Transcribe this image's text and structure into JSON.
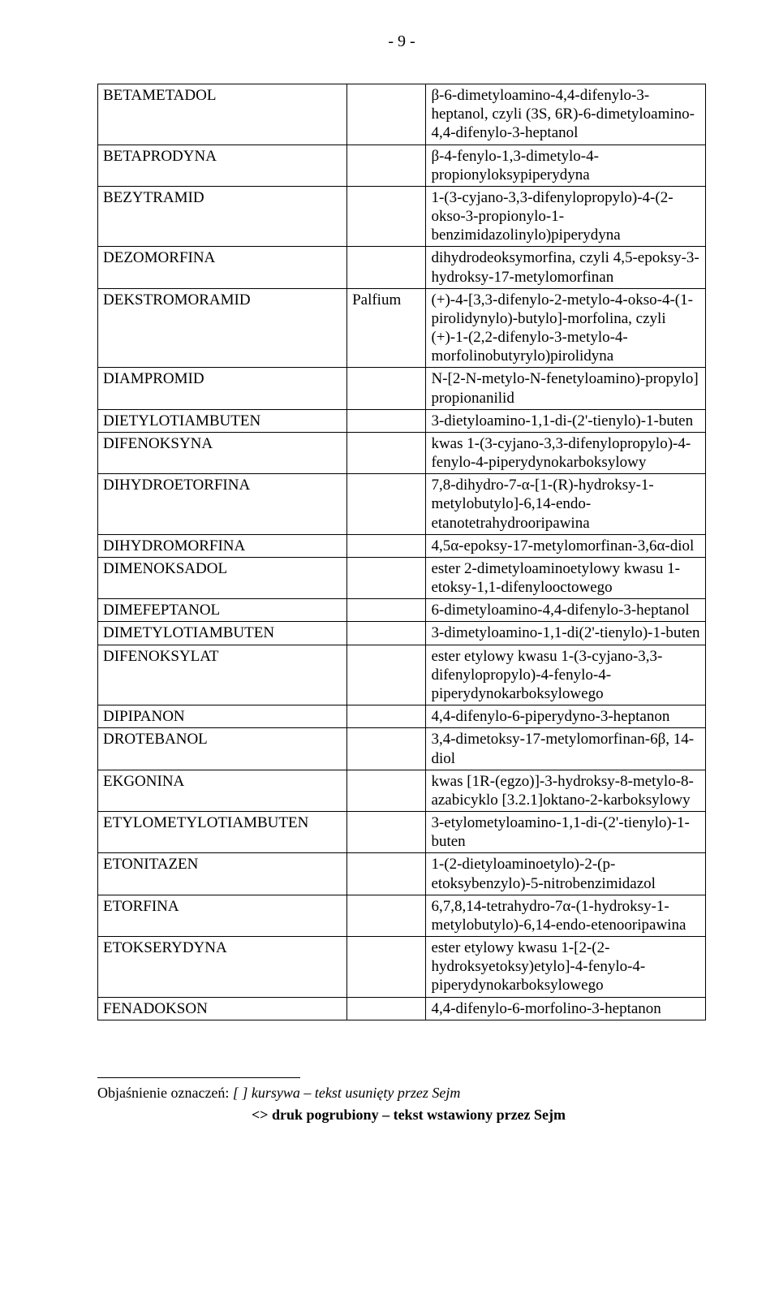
{
  "page_number": "- 9 -",
  "rows": [
    {
      "name": "BETAMETADOL",
      "synonym": "",
      "desc": "β-6-dimetyloamino-4,4-difenylo-3-heptanol, czyli (3S, 6R)-6-dimetyloamino-4,4-difenylo-3-heptanol"
    },
    {
      "name": "BETAPRODYNA",
      "synonym": "",
      "desc": "β-4-fenylo-1,3-dimetylo-4-propionyloksypiperydyna"
    },
    {
      "name": "BEZYTRAMID",
      "synonym": "",
      "desc": "1-(3-cyjano-3,3-difenylopropylo)-4-(2-okso-3-propionylo-1-benzimidazolinylo)piperydyna"
    },
    {
      "name": "DEZOMORFINA",
      "synonym": "",
      "desc": "dihydrodeoksymorfina, czyli 4,5-epoksy-3-hydroksy-17-metylomorfinan"
    },
    {
      "name": "DEKSTROMORAMID",
      "synonym": "Palfium",
      "desc": "(+)-4-[3,3-difenylo-2-metylo-4-okso-4-(1-pirolidynylo)-butylo]-morfolina, czyli (+)-1-(2,2-difenylo-3-metylo-4-morfolinobutyrylo)pirolidyna"
    },
    {
      "name": "DIAMPROMID",
      "synonym": "",
      "desc": "N-[2-N-metylo-N-fenetyloamino)-propylo] propionanilid"
    },
    {
      "name": "DIETYLOTIAMBUTEN",
      "synonym": "",
      "desc": "3-dietyloamino-1,1-di-(2'-tienylo)-1-buten"
    },
    {
      "name": "DIFENOKSYNA",
      "synonym": "",
      "desc": "kwas 1-(3-cyjano-3,3-difenylopropylo)-4-fenylo-4-piperydynokarboksylowy"
    },
    {
      "name": "DIHYDROETORFINA",
      "synonym": "",
      "desc": "7,8-dihydro-7-α-[1-(R)-hydroksy-1-metylobutylo]-6,14-endo-etanotetrahydrooripawina"
    },
    {
      "name": "DIHYDROMORFINA",
      "synonym": "",
      "desc": "4,5α-epoksy-17-metylomorfinan-3,6α-diol"
    },
    {
      "name": "DIMENOKSADOL",
      "synonym": "",
      "desc": "ester 2-dimetyloaminoetylowy kwasu 1-etoksy-1,1-difenylooctowego"
    },
    {
      "name": "DIMEFEPTANOL",
      "synonym": "",
      "desc": "6-dimetyloamino-4,4-difenylo-3-heptanol"
    },
    {
      "name": "DIMETYLOTIAMBUTEN",
      "synonym": "",
      "desc": "3-dimetyloamino-1,1-di(2'-tienylo)-1-buten"
    },
    {
      "name": "DIFENOKSYLAT",
      "synonym": "",
      "desc": "ester etylowy kwasu 1-(3-cyjano-3,3-difenylopropylo)-4-fenylo-4-piperydynokarboksylowego"
    },
    {
      "name": "DIPIPANON",
      "synonym": "",
      "desc": "4,4-difenylo-6-piperydyno-3-heptanon"
    },
    {
      "name": "DROTEBANOL",
      "synonym": "",
      "desc": "3,4-dimetoksy-17-metylomorfinan-6β, 14-diol"
    },
    {
      "name": "EKGONINA",
      "synonym": "",
      "desc": "kwas [1R-(egzo)]-3-hydroksy-8-metylo-8-azabicyklo [3.2.1]oktano-2-karboksylowy"
    },
    {
      "name": "ETYLOMETYLOTIAMBUTEN",
      "synonym": "",
      "desc": "3-etylometyloamino-1,1-di-(2'-tienylo)-1-buten"
    },
    {
      "name": "ETONITAZEN",
      "synonym": "",
      "desc": "1-(2-dietyloaminoetylo)-2-(p-etoksybenzylo)-5-nitrobenzimidazol"
    },
    {
      "name": "ETORFINA",
      "synonym": "",
      "desc": "6,7,8,14-tetrahydro-7α-(1-hydroksy-1-metylobutylo)-6,14-endo-etenooripawina"
    },
    {
      "name": "ETOKSERYDYNA",
      "synonym": "",
      "desc": "ester etylowy kwasu 1-[2-(2-hydroksyetoksy)etylo]-4-fenylo-4-piperydynokarboksylowego"
    },
    {
      "name": "FENADOKSON",
      "synonym": "",
      "desc": "4,4-difenylo-6-morfolino-3-heptanon"
    }
  ],
  "footnote_label": "Objaśnienie oznaczeń:",
  "footnote_italic": "[ ] kursywa – tekst usunięty przez Sejm",
  "footnote_bold": "<> druk pogrubiony – tekst wstawiony przez Sejm"
}
